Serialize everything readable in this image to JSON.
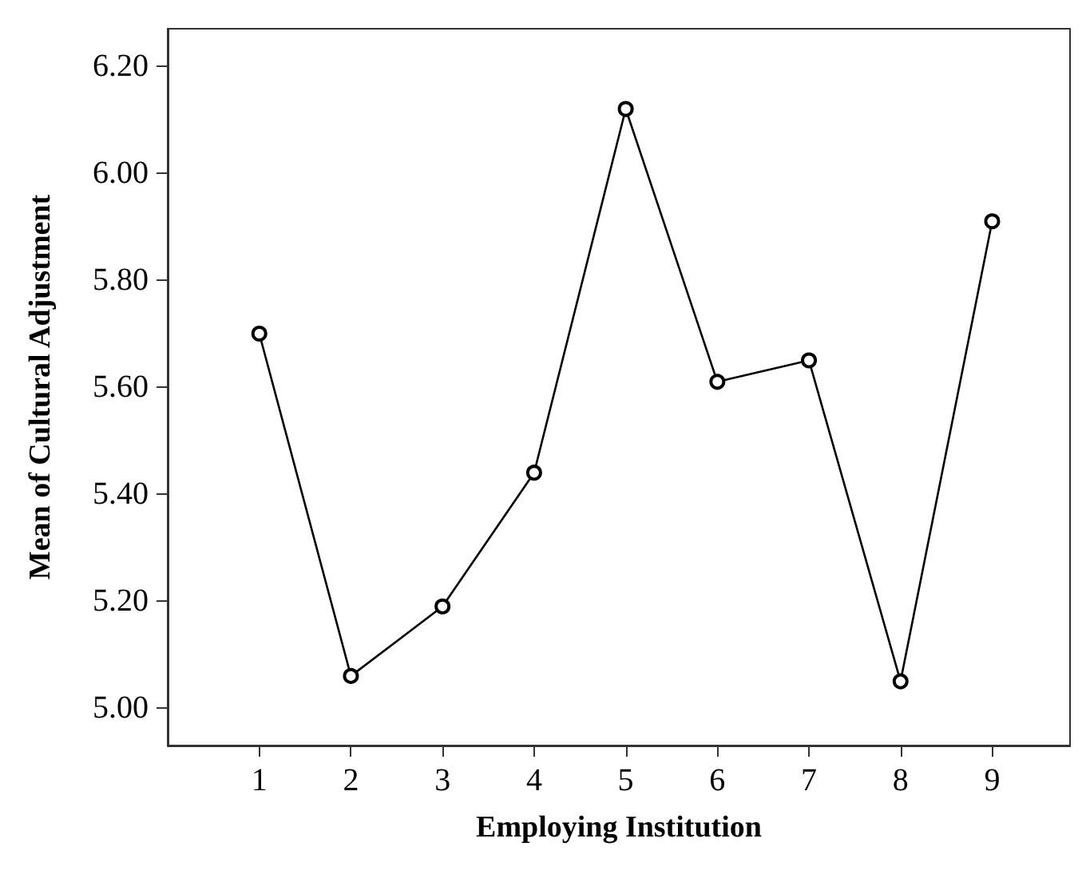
{
  "chart_data": {
    "type": "line",
    "xlabel": "Employing Institution",
    "ylabel": "Mean of Cultural Adjustment",
    "x": [
      1,
      2,
      3,
      4,
      5,
      6,
      7,
      8,
      9
    ],
    "series": [
      {
        "color": "#000000",
        "values": [
          5.7,
          5.06,
          5.19,
          5.44,
          6.12,
          5.61,
          5.65,
          5.05,
          5.91
        ]
      }
    ],
    "xlim": [
      0,
      9.85
    ],
    "xticks": [
      1,
      2,
      3,
      4,
      5,
      6,
      7,
      8,
      9
    ],
    "ylim": [
      4.93,
      6.27
    ],
    "yticks": [
      {
        "value": 5,
        "label": "5.00"
      },
      {
        "value": 5.2,
        "label": "5.20"
      },
      {
        "value": 5.4,
        "label": "5.40"
      },
      {
        "value": 5.6,
        "label": "5.60"
      },
      {
        "value": 5.8,
        "label": "5.80"
      },
      {
        "value": 6,
        "label": "6.00"
      },
      {
        "value": 6.2,
        "label": "6.20"
      }
    ],
    "grid": false,
    "marker": "circle",
    "line_style": "solid"
  }
}
